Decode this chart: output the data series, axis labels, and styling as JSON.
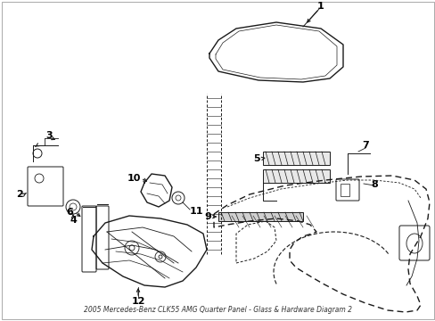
{
  "title": "2005 Mercedes-Benz CLK55 AMG Quarter Panel - Glass & Hardware Diagram 2",
  "bg_color": "#ffffff",
  "fig_width": 4.89,
  "fig_height": 3.6,
  "dpi": 100,
  "line_color": "#1a1a1a",
  "label_fontsize": 8,
  "label_color": "#000000",
  "label_fontweight": "bold"
}
